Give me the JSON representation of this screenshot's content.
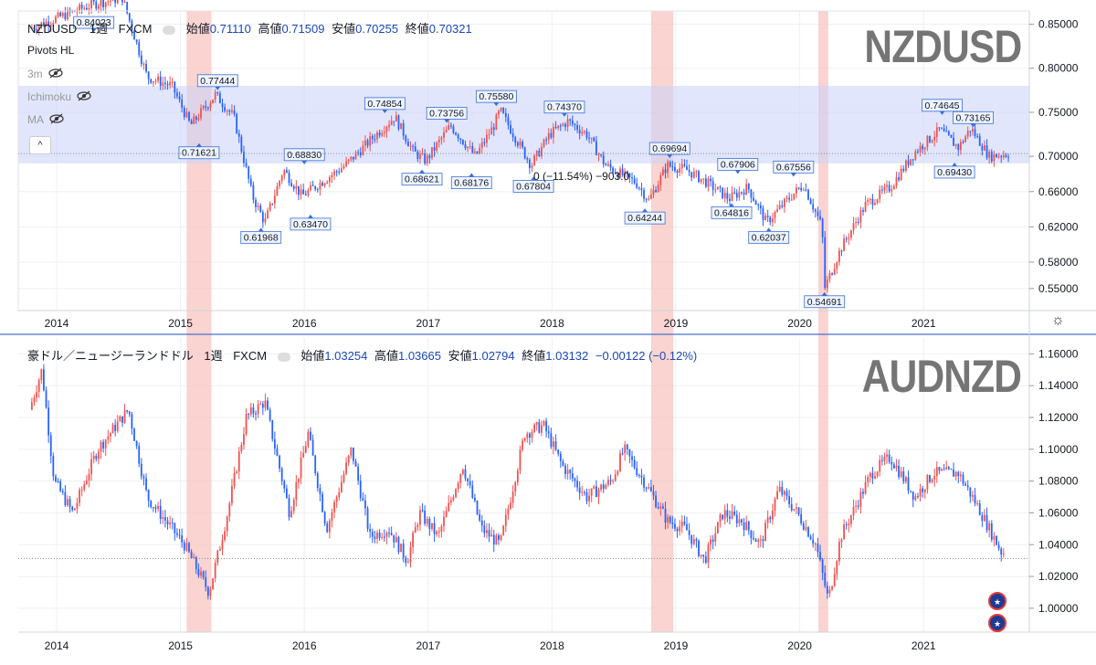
{
  "top_header": {
    "symbol": "NZDUSD",
    "interval": "1週",
    "source": "FXCM",
    "open_label": "始値",
    "open": "0.71110",
    "high_label": "高値",
    "high": "0.71509",
    "low_label": "安値",
    "low": "0.70255",
    "close_label": "終値",
    "close": "0.70321"
  },
  "bottom_header": {
    "symbol": "豪ドル／ニュージーランドドル",
    "interval": "1週",
    "source": "FXCM",
    "open_label": "始値",
    "open": "1.03254",
    "high_label": "高値",
    "high": "1.03665",
    "low_label": "安値",
    "low": "1.02794",
    "close_label": "終値",
    "close": "1.03132",
    "change": "−0.00122",
    "change_pct": "(−0.12%)"
  },
  "indicators": [
    "Pivots HL",
    "3m",
    "Ichimoku",
    "MA"
  ],
  "watermarks": {
    "top": "NZDUSD",
    "bottom": "AUDNZD"
  },
  "measure_label": "0 (−11.54%) −903.0",
  "colors": {
    "up": "#ef5350",
    "down": "#2962ff",
    "band": "#c8d2fa",
    "highlight": "#f7c6c2",
    "pivot_bg": "#eef4ff"
  },
  "chart_data": [
    {
      "type": "candlestick",
      "title": "NZDUSD",
      "x_ticks": [
        "2014",
        "2015",
        "2016",
        "2017",
        "2018",
        "2019",
        "2020",
        "2021"
      ],
      "y_ticks": [
        "0.85000",
        "0.80000",
        "0.75000",
        "0.70000",
        "0.66000",
        "0.62000",
        "0.58000",
        "0.55000"
      ],
      "series_points": [
        [
          2013.8,
          0.845
        ],
        [
          2014.3,
          0.872
        ],
        [
          2014.55,
          0.88
        ],
        [
          2014.75,
          0.79
        ],
        [
          2014.95,
          0.78
        ],
        [
          2015.1,
          0.735
        ],
        [
          2015.3,
          0.77
        ],
        [
          2015.45,
          0.745
        ],
        [
          2015.6,
          0.655
        ],
        [
          2015.7,
          0.625
        ],
        [
          2015.85,
          0.685
        ],
        [
          2016.0,
          0.655
        ],
        [
          2016.1,
          0.665
        ],
        [
          2016.35,
          0.69
        ],
        [
          2016.6,
          0.725
        ],
        [
          2016.75,
          0.745
        ],
        [
          2016.9,
          0.705
        ],
        [
          2017.0,
          0.695
        ],
        [
          2017.2,
          0.735
        ],
        [
          2017.4,
          0.7
        ],
        [
          2017.55,
          0.735
        ],
        [
          2017.6,
          0.752
        ],
        [
          2017.85,
          0.69
        ],
        [
          2018.0,
          0.725
        ],
        [
          2018.15,
          0.74
        ],
        [
          2018.3,
          0.725
        ],
        [
          2018.45,
          0.69
        ],
        [
          2018.7,
          0.67
        ],
        [
          2018.8,
          0.65
        ],
        [
          2018.95,
          0.69
        ],
        [
          2019.1,
          0.685
        ],
        [
          2019.25,
          0.672
        ],
        [
          2019.45,
          0.652
        ],
        [
          2019.6,
          0.665
        ],
        [
          2019.75,
          0.625
        ],
        [
          2019.95,
          0.655
        ],
        [
          2020.05,
          0.668
        ],
        [
          2020.2,
          0.62
        ],
        [
          2020.22,
          0.55
        ],
        [
          2020.35,
          0.595
        ],
        [
          2020.55,
          0.645
        ],
        [
          2020.75,
          0.665
        ],
        [
          2020.95,
          0.705
        ],
        [
          2021.15,
          0.73
        ],
        [
          2021.3,
          0.71
        ],
        [
          2021.4,
          0.732
        ],
        [
          2021.55,
          0.7
        ],
        [
          2021.7,
          0.703
        ]
      ],
      "pivots": [
        {
          "label": "0.84023",
          "x": 2014.3,
          "y": 0.84,
          "dir": "up"
        },
        {
          "label": "0.77444",
          "x": 2015.3,
          "y": 0.774,
          "dir": "up"
        },
        {
          "label": "0.71621",
          "x": 2015.15,
          "y": 0.716,
          "dir": "down"
        },
        {
          "label": "0.68830",
          "x": 2016.0,
          "y": 0.69,
          "dir": "up"
        },
        {
          "label": "0.61968",
          "x": 2015.65,
          "y": 0.62,
          "dir": "down"
        },
        {
          "label": "0.63470",
          "x": 2016.05,
          "y": 0.635,
          "dir": "down"
        },
        {
          "label": "0.74854",
          "x": 2016.65,
          "y": 0.748,
          "dir": "up"
        },
        {
          "label": "0.68621",
          "x": 2016.95,
          "y": 0.686,
          "dir": "down"
        },
        {
          "label": "0.73756",
          "x": 2017.15,
          "y": 0.737,
          "dir": "up"
        },
        {
          "label": "0.68176",
          "x": 2017.35,
          "y": 0.682,
          "dir": "down"
        },
        {
          "label": "0.75580",
          "x": 2017.55,
          "y": 0.756,
          "dir": "up"
        },
        {
          "label": "0.67804",
          "x": 2017.85,
          "y": 0.678,
          "dir": "down"
        },
        {
          "label": "0.74370",
          "x": 2018.1,
          "y": 0.744,
          "dir": "up"
        },
        {
          "label": "0.69694",
          "x": 2018.95,
          "y": 0.697,
          "dir": "up"
        },
        {
          "label": "0.64244",
          "x": 2018.75,
          "y": 0.642,
          "dir": "down"
        },
        {
          "label": "0.67906",
          "x": 2019.5,
          "y": 0.679,
          "dir": "up"
        },
        {
          "label": "0.64816",
          "x": 2019.45,
          "y": 0.648,
          "dir": "down"
        },
        {
          "label": "0.62037",
          "x": 2019.75,
          "y": 0.62,
          "dir": "down"
        },
        {
          "label": "0.67556",
          "x": 2019.95,
          "y": 0.676,
          "dir": "up"
        },
        {
          "label": "0.54691",
          "x": 2020.2,
          "y": 0.547,
          "dir": "down"
        },
        {
          "label": "0.74645",
          "x": 2021.15,
          "y": 0.746,
          "dir": "up"
        },
        {
          "label": "0.73165",
          "x": 2021.4,
          "y": 0.732,
          "dir": "up"
        },
        {
          "label": "0.69430",
          "x": 2021.25,
          "y": 0.694,
          "dir": "down"
        }
      ]
    },
    {
      "type": "candlestick",
      "title": "AUDNZD",
      "x_ticks": [
        "2014",
        "2015",
        "2016",
        "2017",
        "2018",
        "2019",
        "2020",
        "2021"
      ],
      "y_ticks": [
        "1.16000",
        "1.14000",
        "1.12000",
        "1.10000",
        "1.08000",
        "1.06000",
        "1.04000",
        "1.02000",
        "1.00000"
      ],
      "series_points": [
        [
          2013.8,
          1.125
        ],
        [
          2013.9,
          1.15
        ],
        [
          2014.0,
          1.08
        ],
        [
          2014.15,
          1.06
        ],
        [
          2014.35,
          1.1
        ],
        [
          2014.6,
          1.125
        ],
        [
          2014.75,
          1.07
        ],
        [
          2014.95,
          1.05
        ],
        [
          2015.05,
          1.04
        ],
        [
          2015.25,
          1.01
        ],
        [
          2015.4,
          1.06
        ],
        [
          2015.55,
          1.12
        ],
        [
          2015.7,
          1.13
        ],
        [
          2015.9,
          1.06
        ],
        [
          2016.05,
          1.11
        ],
        [
          2016.2,
          1.05
        ],
        [
          2016.4,
          1.1
        ],
        [
          2016.55,
          1.045
        ],
        [
          2016.7,
          1.05
        ],
        [
          2016.85,
          1.03
        ],
        [
          2016.95,
          1.06
        ],
        [
          2017.1,
          1.045
        ],
        [
          2017.3,
          1.09
        ],
        [
          2017.45,
          1.05
        ],
        [
          2017.6,
          1.04
        ],
        [
          2017.8,
          1.11
        ],
        [
          2017.95,
          1.115
        ],
        [
          2018.1,
          1.09
        ],
        [
          2018.3,
          1.07
        ],
        [
          2018.5,
          1.08
        ],
        [
          2018.6,
          1.1
        ],
        [
          2018.8,
          1.075
        ],
        [
          2018.95,
          1.055
        ],
        [
          2019.1,
          1.05
        ],
        [
          2019.25,
          1.03
        ],
        [
          2019.4,
          1.06
        ],
        [
          2019.55,
          1.055
        ],
        [
          2019.7,
          1.04
        ],
        [
          2019.85,
          1.075
        ],
        [
          2020.0,
          1.06
        ],
        [
          2020.15,
          1.04
        ],
        [
          2020.25,
          1.005
        ],
        [
          2020.35,
          1.045
        ],
        [
          2020.6,
          1.085
        ],
        [
          2020.75,
          1.095
        ],
        [
          2020.95,
          1.07
        ],
        [
          2021.1,
          1.085
        ],
        [
          2021.3,
          1.085
        ],
        [
          2021.45,
          1.065
        ],
        [
          2021.55,
          1.05
        ],
        [
          2021.65,
          1.035
        ]
      ]
    }
  ],
  "shaded_periods": [
    [
      2015.05,
      2015.25
    ],
    [
      2018.8,
      2018.98
    ],
    [
      2020.15,
      2020.23
    ]
  ]
}
